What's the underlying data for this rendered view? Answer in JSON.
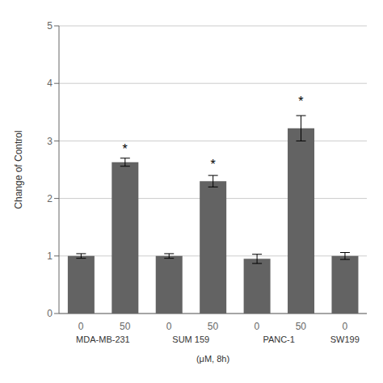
{
  "chart_data": {
    "type": "bar",
    "categories": [
      "0",
      "50",
      "0",
      "50",
      "0",
      "50",
      "0"
    ],
    "groups": [
      "MDA-MB-231",
      "MDA-MB-231",
      "SUM 159",
      "SUM 159",
      "PANC-1",
      "PANC-1",
      "SW199"
    ],
    "values": [
      1.0,
      2.63,
      1.0,
      2.3,
      0.95,
      3.22,
      1.0
    ],
    "errors": [
      0.04,
      0.07,
      0.04,
      0.1,
      0.08,
      0.22,
      0.06
    ],
    "color": "#636363",
    "ylabel": "Change of Control",
    "xlabel": "(μM, 8h)",
    "ylim": [
      0,
      5
    ],
    "yticks": [
      0,
      1,
      2,
      3,
      4,
      5
    ],
    "grid": true,
    "annotations": [
      {
        "text": "*",
        "x": 1,
        "y": 2.9
      },
      {
        "text": "*",
        "x": 3,
        "y": 2.62
      },
      {
        "text": "*",
        "x": 5,
        "y": 3.72
      }
    ]
  }
}
